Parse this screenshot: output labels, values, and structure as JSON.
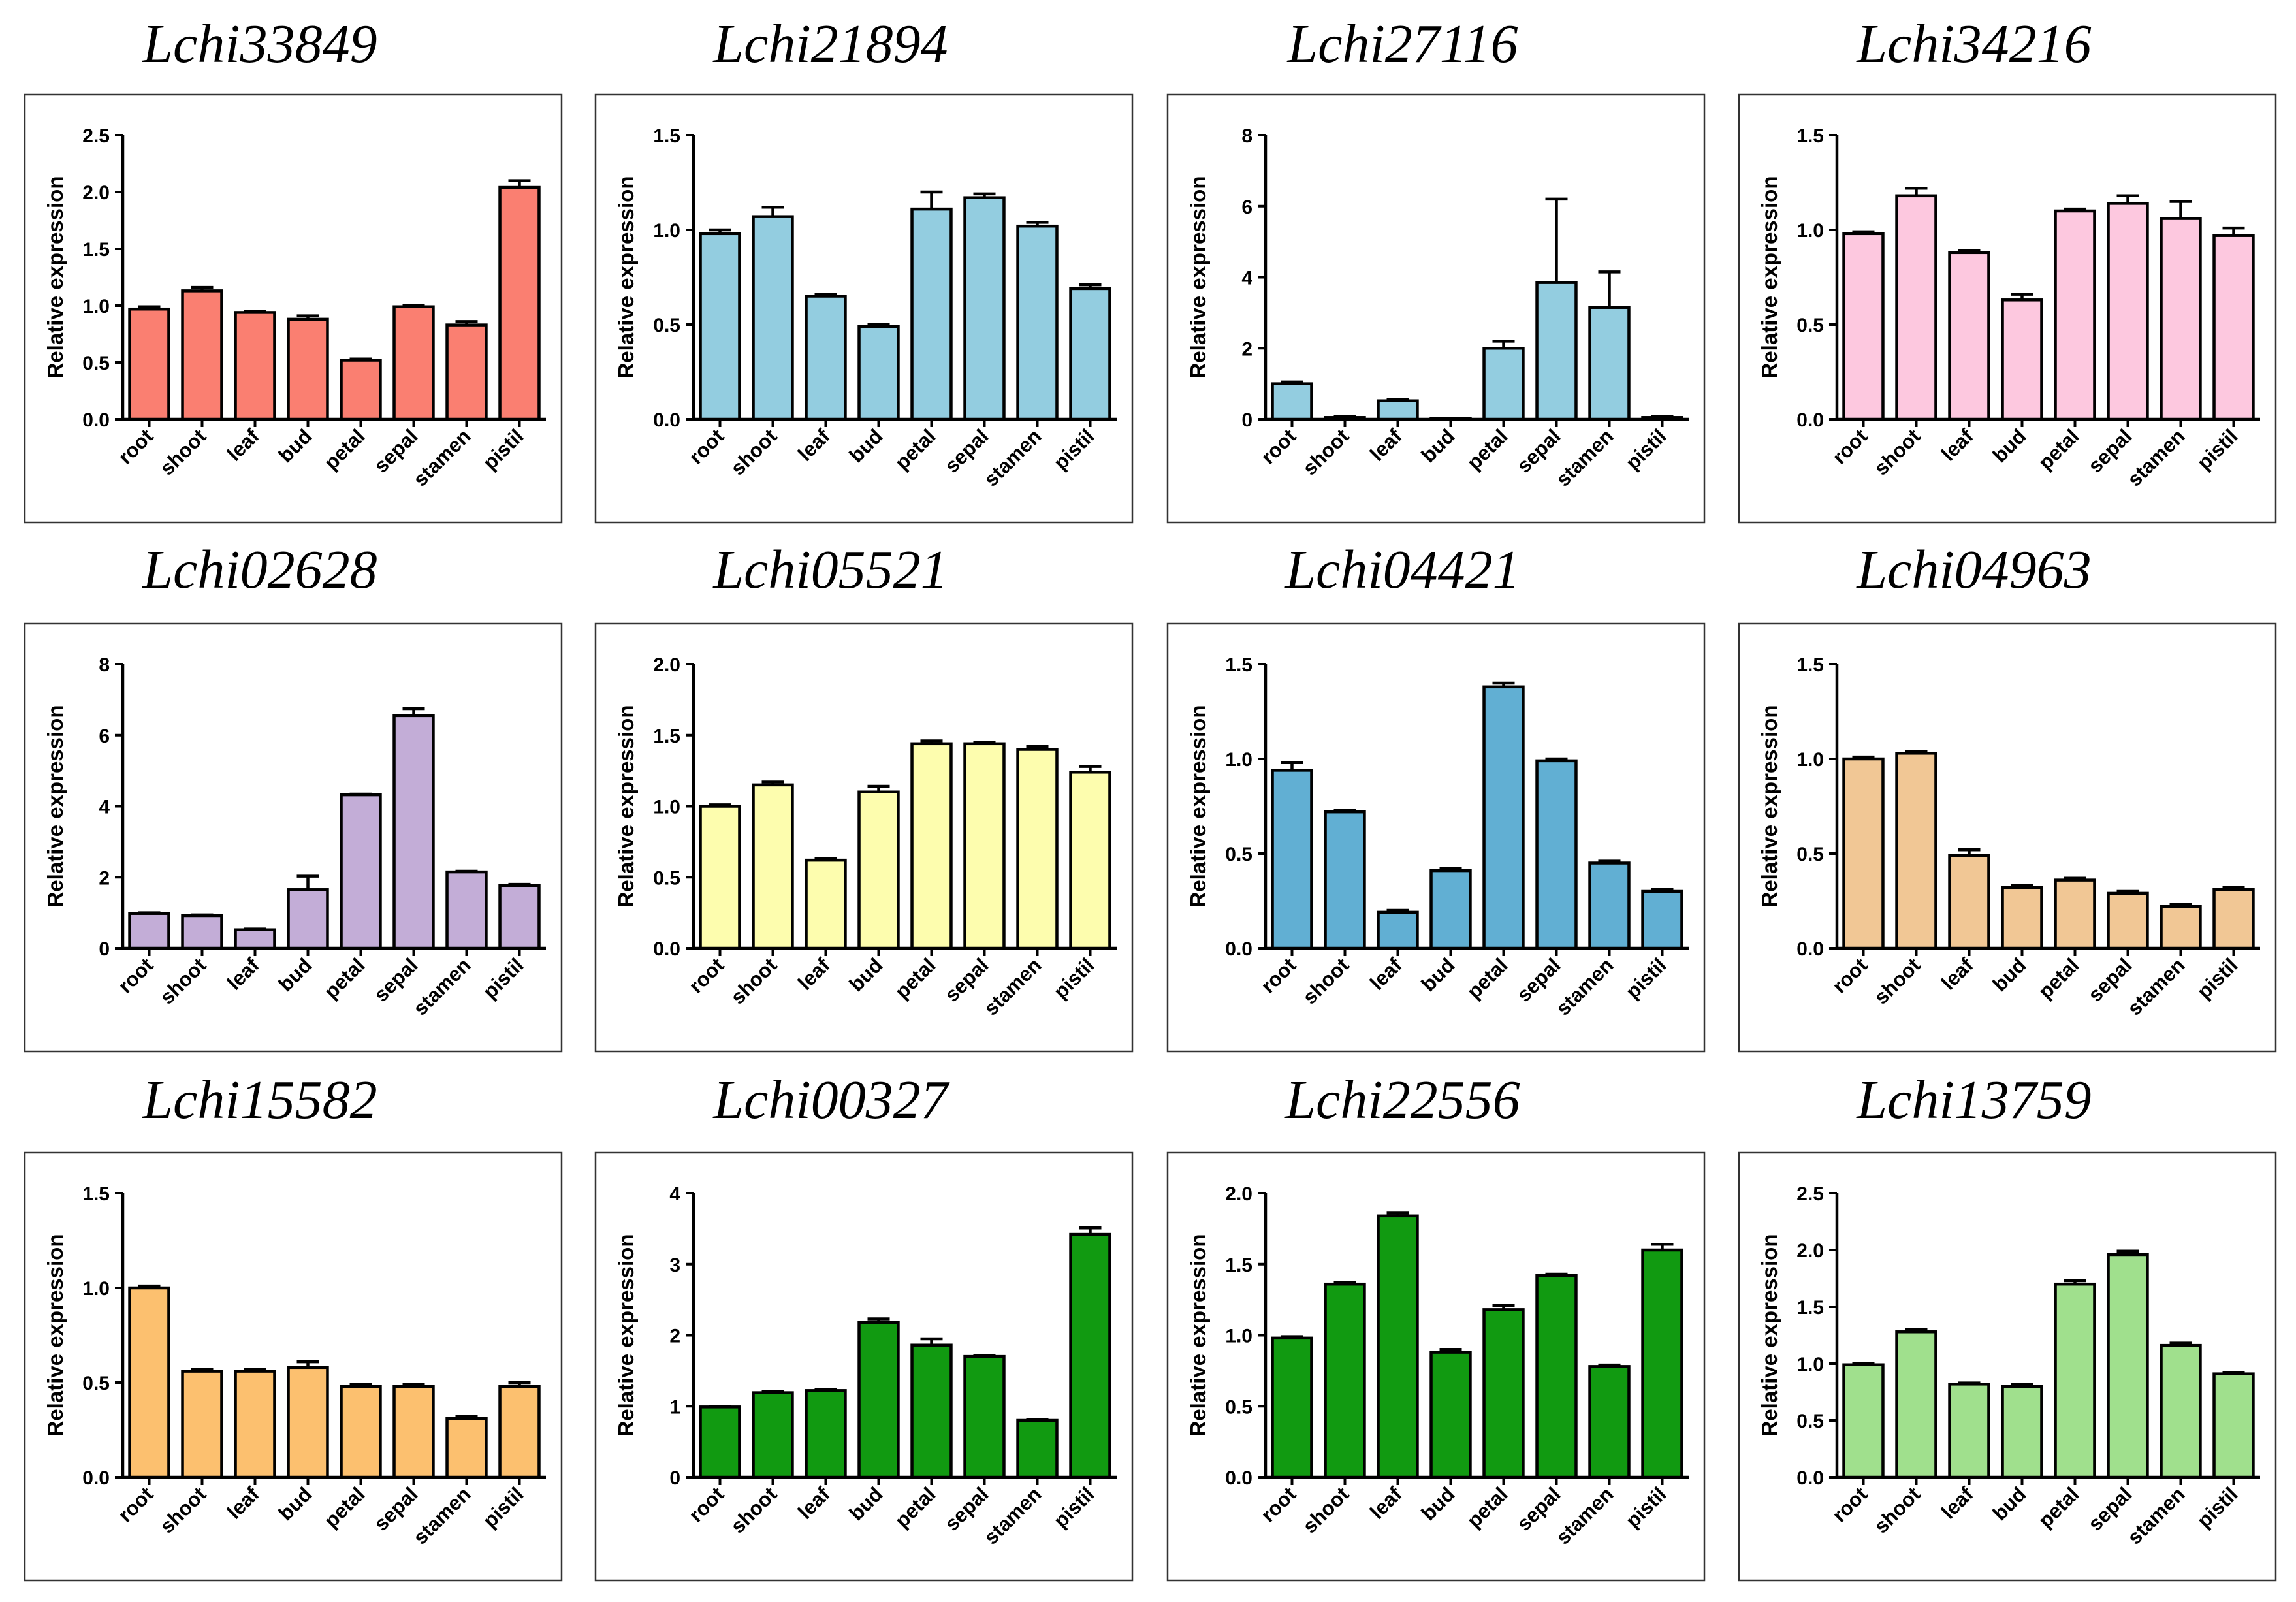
{
  "figure": {
    "background": "#ffffff",
    "frame_color": "#333333",
    "axis_color": "#000000"
  },
  "chart_data": [
    {
      "type": "bar",
      "title": "Lchi33849",
      "ylabel": "Relative expression",
      "xlabel": "",
      "categories": [
        "root",
        "shoot",
        "leaf",
        "bud",
        "petal",
        "sepal",
        "stamen",
        "pistil"
      ],
      "ylim": [
        0,
        2.5
      ],
      "yticks": [
        0,
        0.5,
        1,
        1.5,
        2,
        2.5
      ],
      "yticklabels": [
        "0.0",
        "0.5",
        "1.0",
        "1.5",
        "2.0",
        "2.5"
      ],
      "values": [
        0.97,
        1.13,
        0.94,
        0.88,
        0.52,
        0.99,
        0.83,
        2.04
      ],
      "errors": [
        0.02,
        0.03,
        0.01,
        0.03,
        0.01,
        0.01,
        0.03,
        0.06
      ],
      "color": "#FA7F71"
    },
    {
      "type": "bar",
      "title": "Lchi21894",
      "ylabel": "Relative expression",
      "xlabel": "",
      "categories": [
        "root",
        "shoot",
        "leaf",
        "bud",
        "petal",
        "sepal",
        "stamen",
        "pistil"
      ],
      "ylim": [
        0,
        1.5
      ],
      "yticks": [
        0,
        0.5,
        1,
        1.5
      ],
      "yticklabels": [
        "0.0",
        "0.5",
        "1.0",
        "1.5"
      ],
      "values": [
        0.98,
        1.07,
        0.65,
        0.49,
        1.11,
        1.17,
        1.02,
        0.69
      ],
      "errors": [
        0.02,
        0.05,
        0.01,
        0.01,
        0.09,
        0.02,
        0.02,
        0.02
      ],
      "color": "#93CDE0"
    },
    {
      "type": "bar",
      "title": "Lchi27116",
      "ylabel": "Relative expression",
      "xlabel": "",
      "categories": [
        "root",
        "shoot",
        "leaf",
        "bud",
        "petal",
        "sepal",
        "stamen",
        "pistil"
      ],
      "ylim": [
        0,
        8
      ],
      "yticks": [
        0,
        2,
        4,
        6,
        8
      ],
      "yticklabels": [
        "0",
        "2",
        "4",
        "6",
        "8"
      ],
      "values": [
        1.0,
        0.05,
        0.52,
        0.02,
        2.0,
        3.85,
        3.15,
        0.05
      ],
      "errors": [
        0.05,
        0.02,
        0.03,
        0.01,
        0.2,
        2.35,
        1.0,
        0.02
      ],
      "color": "#93CDE0"
    },
    {
      "type": "bar",
      "title": "Lchi34216",
      "ylabel": "Relative expression",
      "xlabel": "",
      "categories": [
        "root",
        "shoot",
        "leaf",
        "bud",
        "petal",
        "sepal",
        "stamen",
        "pistil"
      ],
      "ylim": [
        0,
        1.5
      ],
      "yticks": [
        0,
        0.5,
        1,
        1.5
      ],
      "yticklabels": [
        "0.0",
        "0.5",
        "1.0",
        "1.5"
      ],
      "values": [
        0.98,
        1.18,
        0.88,
        0.63,
        1.1,
        1.14,
        1.06,
        0.97
      ],
      "errors": [
        0.01,
        0.04,
        0.01,
        0.03,
        0.01,
        0.04,
        0.09,
        0.04
      ],
      "color": "#FDC8DF"
    },
    {
      "type": "bar",
      "title": "Lchi02628",
      "ylabel": "Relative expression",
      "xlabel": "",
      "categories": [
        "root",
        "shoot",
        "leaf",
        "bud",
        "petal",
        "sepal",
        "stamen",
        "pistil"
      ],
      "ylim": [
        0,
        8
      ],
      "yticks": [
        0,
        2,
        4,
        6,
        8
      ],
      "yticklabels": [
        "0",
        "2",
        "4",
        "6",
        "8"
      ],
      "values": [
        0.98,
        0.92,
        0.52,
        1.65,
        4.32,
        6.55,
        2.15,
        1.77
      ],
      "errors": [
        0.02,
        0.02,
        0.02,
        0.38,
        0.02,
        0.2,
        0.02,
        0.03
      ],
      "color": "#C3ADD7"
    },
    {
      "type": "bar",
      "title": "Lchi05521",
      "ylabel": "Relative expression",
      "xlabel": "",
      "categories": [
        "root",
        "shoot",
        "leaf",
        "bud",
        "petal",
        "sepal",
        "stamen",
        "pistil"
      ],
      "ylim": [
        0,
        2.0
      ],
      "yticks": [
        0,
        0.5,
        1,
        1.5,
        2
      ],
      "yticklabels": [
        "0.0",
        "0.5",
        "1.0",
        "1.5",
        "2.0"
      ],
      "values": [
        1.0,
        1.15,
        0.62,
        1.1,
        1.44,
        1.44,
        1.4,
        1.24
      ],
      "errors": [
        0.01,
        0.02,
        0.01,
        0.04,
        0.02,
        0.01,
        0.02,
        0.04
      ],
      "color": "#FDFDAE"
    },
    {
      "type": "bar",
      "title": "Lchi04421",
      "ylabel": "Relative expression",
      "xlabel": "",
      "categories": [
        "root",
        "shoot",
        "leaf",
        "bud",
        "petal",
        "sepal",
        "stamen",
        "pistil"
      ],
      "ylim": [
        0,
        1.5
      ],
      "yticks": [
        0,
        0.5,
        1,
        1.5
      ],
      "yticklabels": [
        "0.0",
        "0.5",
        "1.0",
        "1.5"
      ],
      "values": [
        0.94,
        0.72,
        0.19,
        0.41,
        1.38,
        0.99,
        0.45,
        0.3
      ],
      "errors": [
        0.04,
        0.01,
        0.01,
        0.01,
        0.02,
        0.01,
        0.01,
        0.01
      ],
      "color": "#61AFD3"
    },
    {
      "type": "bar",
      "title": "Lchi04963",
      "ylabel": "Relative expression",
      "xlabel": "",
      "categories": [
        "root",
        "shoot",
        "leaf",
        "bud",
        "petal",
        "sepal",
        "stamen",
        "pistil"
      ],
      "ylim": [
        0,
        1.5
      ],
      "yticks": [
        0,
        0.5,
        1,
        1.5
      ],
      "yticklabels": [
        "0.0",
        "0.5",
        "1.0",
        "1.5"
      ],
      "values": [
        1.0,
        1.03,
        0.49,
        0.32,
        0.36,
        0.29,
        0.22,
        0.31
      ],
      "errors": [
        0.01,
        0.01,
        0.03,
        0.01,
        0.01,
        0.01,
        0.01,
        0.01
      ],
      "color": "#F1C795"
    },
    {
      "type": "bar",
      "title": "Lchi15582",
      "ylabel": "Relative expression",
      "xlabel": "",
      "categories": [
        "root",
        "shoot",
        "leaf",
        "bud",
        "petal",
        "sepal",
        "stamen",
        "pistil"
      ],
      "ylim": [
        0,
        1.5
      ],
      "yticks": [
        0,
        0.5,
        1,
        1.5
      ],
      "yticklabels": [
        "0.0",
        "0.5",
        "1.0",
        "1.5"
      ],
      "values": [
        1.0,
        0.56,
        0.56,
        0.58,
        0.48,
        0.48,
        0.31,
        0.48
      ],
      "errors": [
        0.01,
        0.01,
        0.01,
        0.03,
        0.01,
        0.01,
        0.01,
        0.02
      ],
      "color": "#FCC06F"
    },
    {
      "type": "bar",
      "title": "Lchi00327",
      "ylabel": "Relative expression",
      "xlabel": "",
      "categories": [
        "root",
        "shoot",
        "leaf",
        "bud",
        "petal",
        "sepal",
        "stamen",
        "pistil"
      ],
      "ylim": [
        0,
        4
      ],
      "yticks": [
        0,
        1,
        2,
        3,
        4
      ],
      "yticklabels": [
        "0",
        "1",
        "2",
        "3",
        "4"
      ],
      "values": [
        0.99,
        1.19,
        1.22,
        2.18,
        1.86,
        1.7,
        0.8,
        3.42
      ],
      "errors": [
        0.01,
        0.02,
        0.01,
        0.05,
        0.09,
        0.01,
        0.01,
        0.09
      ],
      "color": "#119A11"
    },
    {
      "type": "bar",
      "title": "Lchi22556",
      "ylabel": "Relative expression",
      "xlabel": "",
      "categories": [
        "root",
        "shoot",
        "leaf",
        "bud",
        "petal",
        "sepal",
        "stamen",
        "pistil"
      ],
      "ylim": [
        0,
        2.0
      ],
      "yticks": [
        0,
        0.5,
        1,
        1.5,
        2
      ],
      "yticklabels": [
        "0.0",
        "0.5",
        "1.0",
        "1.5",
        "2.0"
      ],
      "values": [
        0.98,
        1.36,
        1.84,
        0.88,
        1.18,
        1.42,
        0.78,
        1.6
      ],
      "errors": [
        0.01,
        0.01,
        0.02,
        0.02,
        0.03,
        0.01,
        0.01,
        0.04
      ],
      "color": "#119A11"
    },
    {
      "type": "bar",
      "title": "Lchi13759",
      "ylabel": "Relative expression",
      "xlabel": "",
      "categories": [
        "root",
        "shoot",
        "leaf",
        "bud",
        "petal",
        "sepal",
        "stamen",
        "pistil"
      ],
      "ylim": [
        0,
        2.5
      ],
      "yticks": [
        0,
        0.5,
        1,
        1.5,
        2,
        2.5
      ],
      "yticklabels": [
        "0.0",
        "0.5",
        "1.0",
        "1.5",
        "2.0",
        "2.5"
      ],
      "values": [
        0.99,
        1.28,
        0.82,
        0.8,
        1.7,
        1.96,
        1.16,
        0.91
      ],
      "errors": [
        0.01,
        0.02,
        0.01,
        0.02,
        0.03,
        0.03,
        0.02,
        0.01
      ],
      "color": "#A0E08D"
    }
  ]
}
